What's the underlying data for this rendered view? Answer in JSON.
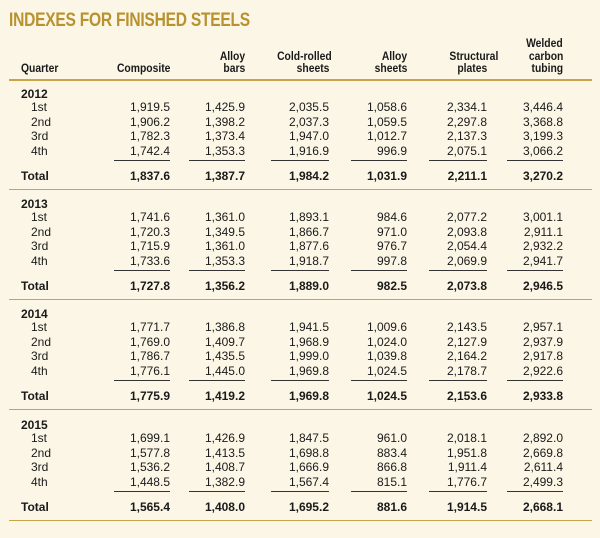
{
  "title": "INDEXES FOR FINISHED STEELS",
  "headers": {
    "quarter": "Quarter",
    "composite": "Composite",
    "alloy_bars": [
      "Alloy",
      "bars"
    ],
    "cold_rolled": [
      "Cold-rolled",
      "sheets"
    ],
    "alloy_sheets": [
      "Alloy",
      "sheets"
    ],
    "structural": [
      "Structural",
      "plates"
    ],
    "welded": [
      "Welded",
      "carbon",
      "tubing"
    ]
  },
  "total_label": "Total",
  "years": [
    {
      "year": "2012",
      "rows": [
        {
          "q": "1st",
          "v": [
            "1,919.5",
            "1,425.9",
            "2,035.5",
            "1,058.6",
            "2,334.1",
            "3,446.4"
          ]
        },
        {
          "q": "2nd",
          "v": [
            "1,906.2",
            "1,398.2",
            "2,037.3",
            "1,059.5",
            "2,297.8",
            "3,368.8"
          ]
        },
        {
          "q": "3rd",
          "v": [
            "1,782.3",
            "1,373.4",
            "1,947.0",
            "1,012.7",
            "2,137.3",
            "3,199.3"
          ]
        },
        {
          "q": "4th",
          "v": [
            "1,742.4",
            "1,353.3",
            "1,916.9",
            "996.9",
            "2,075.1",
            "3,066.2"
          ]
        }
      ],
      "total": [
        "1,837.6",
        "1,387.7",
        "1,984.2",
        "1,031.9",
        "2,211.1",
        "3,270.2"
      ]
    },
    {
      "year": "2013",
      "rows": [
        {
          "q": "1st",
          "v": [
            "1,741.6",
            "1,361.0",
            "1,893.1",
            "984.6",
            "2,077.2",
            "3,001.1"
          ]
        },
        {
          "q": "2nd",
          "v": [
            "1,720.3",
            "1,349.5",
            "1,866.7",
            "971.0",
            "2,093.8",
            "2,911.1"
          ]
        },
        {
          "q": "3rd",
          "v": [
            "1,715.9",
            "1,361.0",
            "1,877.6",
            "976.7",
            "2,054.4",
            "2,932.2"
          ]
        },
        {
          "q": "4th",
          "v": [
            "1,733.6",
            "1,353.3",
            "1,918.7",
            "997.8",
            "2,069.9",
            "2,941.7"
          ]
        }
      ],
      "total": [
        "1,727.8",
        "1,356.2",
        "1,889.0",
        "982.5",
        "2,073.8",
        "2,946.5"
      ]
    },
    {
      "year": "2014",
      "rows": [
        {
          "q": "1st",
          "v": [
            "1,771.7",
            "1,386.8",
            "1,941.5",
            "1,009.6",
            "2,143.5",
            "2,957.1"
          ]
        },
        {
          "q": "2nd",
          "v": [
            "1,769.0",
            "1,409.7",
            "1,968.9",
            "1,024.0",
            "2,127.9",
            "2,937.9"
          ]
        },
        {
          "q": "3rd",
          "v": [
            "1,786.7",
            "1,435.5",
            "1,999.0",
            "1,039.8",
            "2,164.2",
            "2,917.8"
          ]
        },
        {
          "q": "4th",
          "v": [
            "1,776.1",
            "1,445.0",
            "1,969.8",
            "1,024.5",
            "2,178.7",
            "2,922.6"
          ]
        }
      ],
      "total": [
        "1,775.9",
        "1,419.2",
        "1,969.8",
        "1,024.5",
        "2,153.6",
        "2,933.8"
      ]
    },
    {
      "year": "2015",
      "rows": [
        {
          "q": "1st",
          "v": [
            "1,699.1",
            "1,426.9",
            "1,847.5",
            "961.0",
            "2,018.1",
            "2,892.0"
          ]
        },
        {
          "q": "2nd",
          "v": [
            "1,577.8",
            "1,413.5",
            "1,698.8",
            "883.4",
            "1,951.8",
            "2,669.8"
          ]
        },
        {
          "q": "3rd",
          "v": [
            "1,536.2",
            "1,408.7",
            "1,666.9",
            "866.8",
            "1,911.4",
            "2,611.4"
          ]
        },
        {
          "q": "4th",
          "v": [
            "1,448.5",
            "1,382.9",
            "1,567.4",
            "815.1",
            "1,776.7",
            "2,499.3"
          ]
        }
      ],
      "total": [
        "1,565.4",
        "1,408.0",
        "1,695.2",
        "881.6",
        "1,914.5",
        "2,668.1"
      ]
    }
  ]
}
